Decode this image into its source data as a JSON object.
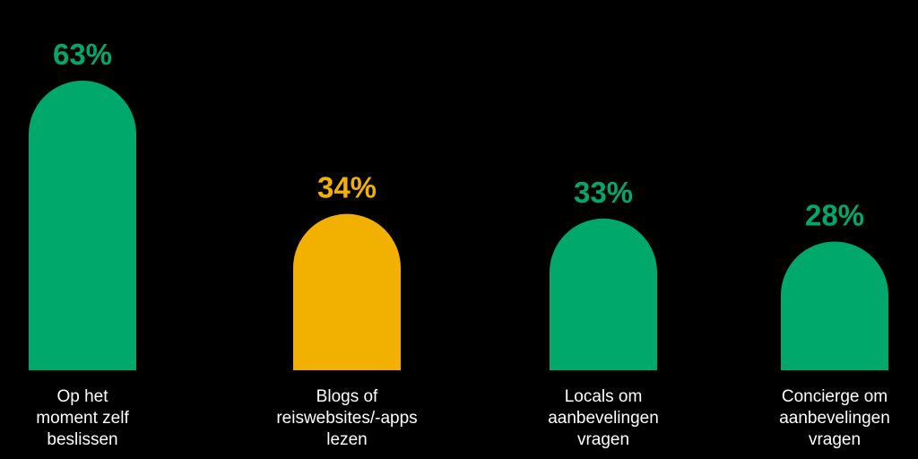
{
  "chart_data": {
    "type": "bar",
    "categories": [
      [
        "Op het",
        "moment zelf",
        "beslissen"
      ],
      [
        "Blogs of",
        "reiswebsites/-apps",
        "lezen"
      ],
      [
        "Locals om",
        "aanbevelingen",
        "vragen"
      ],
      [
        "Concierge om",
        "aanbevelingen",
        "vragen"
      ]
    ],
    "values": [
      63,
      34,
      33,
      28
    ],
    "value_labels": [
      "63%",
      "34%",
      "33%",
      "28%"
    ],
    "bar_colors": [
      "#00a86b",
      "#f2b100",
      "#00a86b",
      "#00a86b"
    ],
    "label_colors": [
      "#00a86b",
      "#f2b100",
      "#00a86b",
      "#00a86b"
    ],
    "title": "",
    "xlabel": "",
    "ylabel": "",
    "ylim": [
      0,
      63
    ],
    "grid": false,
    "legend": "none"
  },
  "colors": {
    "background": "#000000",
    "accent_green": "#00a86b",
    "accent_yellow": "#f2b100",
    "text": "#ffffff"
  }
}
